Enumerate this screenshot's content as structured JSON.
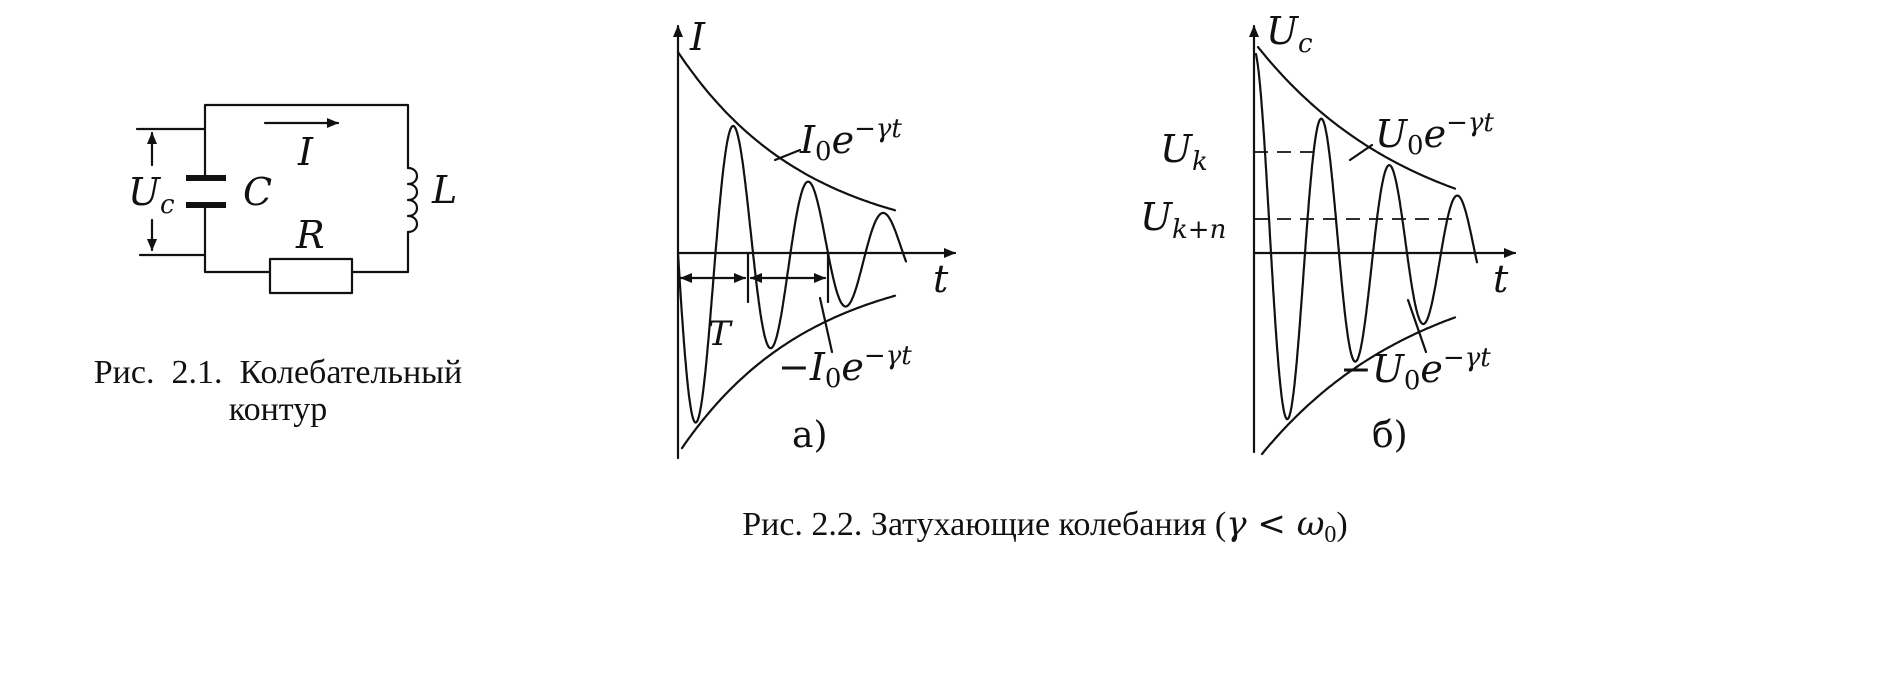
{
  "circuit": {
    "voltage": {
      "base": "U",
      "sub": "c"
    },
    "capacitor": "C",
    "inductor": "L",
    "resistor": "R",
    "current": "I"
  },
  "fig1": {
    "caption_line1": "Рис.  2.1.  Колебательный",
    "caption_line2": "контур"
  },
  "plot_a": {
    "y_axis": "I",
    "x_axis": "t",
    "upper_env": {
      "base": "I",
      "sub": "0",
      "e": "e",
      "exp": "−γt"
    },
    "lower_env": {
      "minus": "−",
      "base": "I",
      "sub": "0",
      "e": "e",
      "exp": "−γt"
    },
    "period": "T",
    "panel": "а)"
  },
  "plot_b": {
    "y_axis": {
      "base": "U",
      "sub": "c"
    },
    "x_axis": "t",
    "uk": {
      "base": "U",
      "sub": "k"
    },
    "ukn": {
      "base": "U",
      "sub": "k+n"
    },
    "upper_env": {
      "base": "U",
      "sub": "0",
      "e": "e",
      "exp": "−γt"
    },
    "lower_env": {
      "minus": "−",
      "base": "U",
      "sub": "0",
      "e": "e",
      "exp": "−γt"
    },
    "panel": "б)"
  },
  "fig2": {
    "caption_prefix": "Рис. 2.2. Затухающие колебания (",
    "gamma": "γ",
    "lt": " < ",
    "omega": "ω",
    "omega_sub": "0",
    "caption_suffix": ")"
  }
}
